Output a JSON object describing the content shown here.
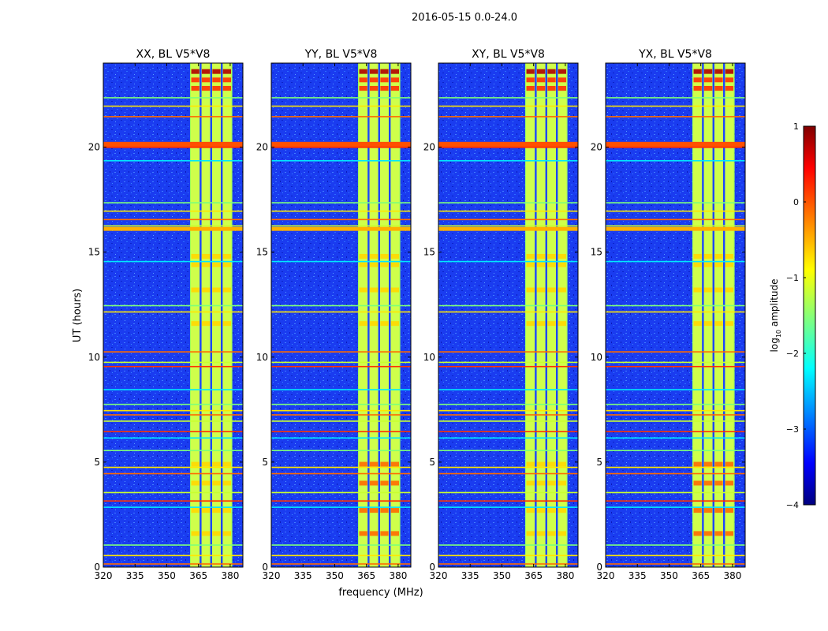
{
  "figure": {
    "suptitle": "2016-05-15 0.0-24.0",
    "xlabel": "frequency (MHz)",
    "ylabel": "UT (hours)"
  },
  "chart_data": {
    "type": "heatmap",
    "title": "2016-05-15 0.0-24.0",
    "xlabel": "frequency (MHz)",
    "ylabel": "UT (hours)",
    "xlim": [
      320,
      386
    ],
    "ylim": [
      0,
      24
    ],
    "x_ticks": [
      320,
      335,
      350,
      365,
      380
    ],
    "y_ticks": [
      0,
      5,
      10,
      15,
      20
    ],
    "panels": [
      {
        "name": "XX",
        "title": "XX, BL V5*V8",
        "show_yticks": true
      },
      {
        "name": "YY",
        "title": "YY, BL V5*V8",
        "show_yticks": true
      },
      {
        "name": "XY",
        "title": "XY, BL V5*V8",
        "show_yticks": true
      },
      {
        "name": "YX",
        "title": "YX, BL V5*V8",
        "show_yticks": true
      }
    ],
    "signal_band_mhz": [
      361,
      381
    ],
    "signal_channels_mhz": [
      363.5,
      368.5,
      373.5,
      378.5
    ],
    "rfi_horizontal_lines_ut": [
      0.15,
      0.55,
      1.05,
      2.85,
      3.15,
      3.55,
      4.45,
      4.75,
      5.55,
      6.15,
      6.45,
      6.95,
      7.25,
      7.45,
      7.75,
      8.45,
      9.55,
      9.75,
      10.25,
      12.15,
      12.45,
      14.55,
      16.05,
      16.25,
      16.55,
      16.95,
      17.35,
      19.35,
      20.05,
      20.15,
      21.45,
      21.95,
      22.35
    ],
    "colorbar": {
      "label": "log10 amplitude",
      "label_prefix": "log",
      "label_sub": "10",
      "label_suffix": " amplitude",
      "range": [
        -4,
        1
      ],
      "ticks": [
        -4,
        -3,
        -2,
        -1,
        0,
        1
      ],
      "tick_labels": [
        "−4",
        "−3",
        "−2",
        "−1",
        "0",
        "1"
      ],
      "colormap": "jet"
    }
  }
}
